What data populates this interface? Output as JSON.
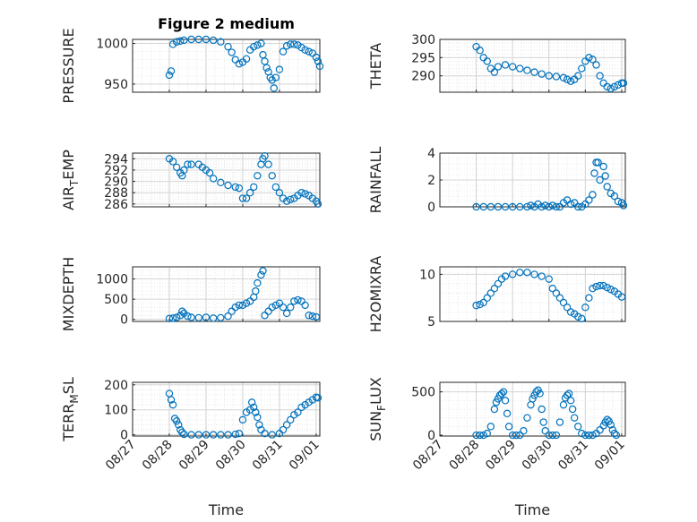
{
  "colors": {
    "marker": "#0072BD",
    "axis": "#262626",
    "grid": "#d0d0d0"
  },
  "chart_data": [
    {
      "type": "scatter",
      "title": "Figure 2 medium",
      "ylabel": {
        "main": "PRESSURE",
        "sub": "",
        "tail": ""
      },
      "xlabel": "",
      "x_tick_labels": false,
      "ylim": [
        940,
        1005
      ],
      "yticks": [
        950,
        1000
      ],
      "grid": true,
      "points": [
        [
          28.0,
          961
        ],
        [
          28.05,
          966
        ],
        [
          28.1,
          999
        ],
        [
          28.2,
          1002
        ],
        [
          28.3,
          1003
        ],
        [
          28.4,
          1004
        ],
        [
          28.6,
          1005
        ],
        [
          28.8,
          1005
        ],
        [
          29.0,
          1005
        ],
        [
          29.2,
          1004
        ],
        [
          29.4,
          1002
        ],
        [
          29.6,
          996
        ],
        [
          29.7,
          989
        ],
        [
          29.8,
          980
        ],
        [
          29.9,
          975
        ],
        [
          30.0,
          977
        ],
        [
          30.1,
          981
        ],
        [
          30.2,
          992
        ],
        [
          30.3,
          996
        ],
        [
          30.4,
          998
        ],
        [
          30.5,
          1000
        ],
        [
          30.55,
          986
        ],
        [
          30.6,
          978
        ],
        [
          30.65,
          970
        ],
        [
          30.7,
          965
        ],
        [
          30.75,
          958
        ],
        [
          30.8,
          955
        ],
        [
          30.85,
          945
        ],
        [
          30.9,
          958
        ],
        [
          31.0,
          968
        ],
        [
          31.1,
          990
        ],
        [
          31.2,
          997
        ],
        [
          31.3,
          999
        ],
        [
          31.4,
          999
        ],
        [
          31.5,
          998
        ],
        [
          31.6,
          995
        ],
        [
          31.7,
          992
        ],
        [
          31.8,
          990
        ],
        [
          31.9,
          988
        ],
        [
          32.0,
          983
        ],
        [
          32.05,
          978
        ],
        [
          32.1,
          972
        ]
      ]
    },
    {
      "type": "scatter",
      "title": "",
      "ylabel": {
        "main": "THETA",
        "sub": "",
        "tail": ""
      },
      "xlabel": "",
      "x_tick_labels": false,
      "ylim": [
        285.5,
        300
      ],
      "yticks": [
        290,
        295,
        300
      ],
      "grid": true,
      "points": [
        [
          28.0,
          298
        ],
        [
          28.1,
          297
        ],
        [
          28.2,
          295
        ],
        [
          28.3,
          294
        ],
        [
          28.4,
          292
        ],
        [
          28.5,
          291
        ],
        [
          28.6,
          292.5
        ],
        [
          28.8,
          293
        ],
        [
          29.0,
          292.5
        ],
        [
          29.2,
          292
        ],
        [
          29.4,
          291.5
        ],
        [
          29.6,
          291
        ],
        [
          29.8,
          290.5
        ],
        [
          30.0,
          290
        ],
        [
          30.2,
          289.8
        ],
        [
          30.4,
          289.5
        ],
        [
          30.5,
          289
        ],
        [
          30.6,
          288.5
        ],
        [
          30.7,
          289
        ],
        [
          30.8,
          290
        ],
        [
          30.9,
          292
        ],
        [
          31.0,
          294
        ],
        [
          31.1,
          295
        ],
        [
          31.2,
          294.5
        ],
        [
          31.3,
          293
        ],
        [
          31.4,
          290
        ],
        [
          31.5,
          288
        ],
        [
          31.6,
          287
        ],
        [
          31.7,
          286.5
        ],
        [
          31.8,
          287
        ],
        [
          31.9,
          287.5
        ],
        [
          32.0,
          288
        ],
        [
          32.05,
          288
        ]
      ]
    },
    {
      "type": "scatter",
      "title": "",
      "ylabel": {
        "main": "AIR",
        "sub": "T",
        "tail": "EMP"
      },
      "xlabel": "",
      "x_tick_labels": false,
      "ylim": [
        285.5,
        295
      ],
      "yticks": [
        286,
        288,
        290,
        292,
        294
      ],
      "grid": true,
      "points": [
        [
          28.0,
          294
        ],
        [
          28.1,
          293.5
        ],
        [
          28.2,
          292.5
        ],
        [
          28.3,
          291.5
        ],
        [
          28.35,
          291
        ],
        [
          28.4,
          292
        ],
        [
          28.5,
          293
        ],
        [
          28.6,
          293
        ],
        [
          28.8,
          293
        ],
        [
          28.9,
          292.5
        ],
        [
          29.0,
          292
        ],
        [
          29.1,
          291.5
        ],
        [
          29.2,
          290.5
        ],
        [
          29.4,
          289.8
        ],
        [
          29.6,
          289.3
        ],
        [
          29.8,
          289
        ],
        [
          29.9,
          288.8
        ],
        [
          30.0,
          287
        ],
        [
          30.1,
          287
        ],
        [
          30.2,
          288
        ],
        [
          30.3,
          289
        ],
        [
          30.4,
          291
        ],
        [
          30.5,
          293
        ],
        [
          30.55,
          294
        ],
        [
          30.6,
          294.5
        ],
        [
          30.7,
          293
        ],
        [
          30.8,
          291
        ],
        [
          30.9,
          289
        ],
        [
          31.0,
          288
        ],
        [
          31.1,
          287
        ],
        [
          31.2,
          286.5
        ],
        [
          31.3,
          286.8
        ],
        [
          31.4,
          287
        ],
        [
          31.5,
          287.5
        ],
        [
          31.6,
          288
        ],
        [
          31.7,
          287.8
        ],
        [
          31.8,
          287.5
        ],
        [
          31.9,
          287
        ],
        [
          32.0,
          286.5
        ],
        [
          32.05,
          286
        ]
      ]
    },
    {
      "type": "scatter",
      "title": "",
      "ylabel": {
        "main": "RAINFALL",
        "sub": "",
        "tail": ""
      },
      "xlabel": "",
      "x_tick_labels": false,
      "ylim": [
        0,
        4
      ],
      "yticks": [
        0,
        2,
        4
      ],
      "grid": true,
      "points": [
        [
          28.0,
          0
        ],
        [
          28.2,
          0
        ],
        [
          28.4,
          0
        ],
        [
          28.6,
          0
        ],
        [
          28.8,
          0
        ],
        [
          29.0,
          0
        ],
        [
          29.2,
          0
        ],
        [
          29.4,
          0
        ],
        [
          29.5,
          0.1
        ],
        [
          29.6,
          0
        ],
        [
          29.7,
          0.2
        ],
        [
          29.8,
          0
        ],
        [
          29.9,
          0.1
        ],
        [
          30.0,
          0
        ],
        [
          30.1,
          0.1
        ],
        [
          30.2,
          0
        ],
        [
          30.3,
          0
        ],
        [
          30.4,
          0.3
        ],
        [
          30.5,
          0.5
        ],
        [
          30.6,
          0.2
        ],
        [
          30.7,
          0.3
        ],
        [
          30.8,
          0
        ],
        [
          30.9,
          0
        ],
        [
          31.0,
          0.2
        ],
        [
          31.1,
          0.5
        ],
        [
          31.2,
          0.9
        ],
        [
          31.25,
          2.5
        ],
        [
          31.3,
          3.3
        ],
        [
          31.35,
          3.3
        ],
        [
          31.4,
          2.0
        ],
        [
          31.5,
          3.0
        ],
        [
          31.55,
          2.3
        ],
        [
          31.6,
          1.5
        ],
        [
          31.7,
          1.0
        ],
        [
          31.8,
          0.8
        ],
        [
          31.9,
          0.4
        ],
        [
          32.0,
          0.3
        ],
        [
          32.05,
          0.1
        ]
      ]
    },
    {
      "type": "scatter",
      "title": "",
      "ylabel": {
        "main": "MIXDEPTH",
        "sub": "",
        "tail": ""
      },
      "xlabel": "",
      "x_tick_labels": false,
      "ylim": [
        -50,
        1300
      ],
      "yticks": [
        0,
        500,
        1000
      ],
      "grid": true,
      "points": [
        [
          28.0,
          20
        ],
        [
          28.1,
          30
        ],
        [
          28.2,
          50
        ],
        [
          28.3,
          100
        ],
        [
          28.35,
          200
        ],
        [
          28.4,
          150
        ],
        [
          28.5,
          80
        ],
        [
          28.6,
          50
        ],
        [
          28.8,
          40
        ],
        [
          29.0,
          50
        ],
        [
          29.2,
          30
        ],
        [
          29.4,
          40
        ],
        [
          29.6,
          80
        ],
        [
          29.7,
          200
        ],
        [
          29.8,
          300
        ],
        [
          29.9,
          350
        ],
        [
          30.0,
          350
        ],
        [
          30.1,
          400
        ],
        [
          30.2,
          450
        ],
        [
          30.3,
          550
        ],
        [
          30.35,
          700
        ],
        [
          30.4,
          900
        ],
        [
          30.5,
          1100
        ],
        [
          30.55,
          1200
        ],
        [
          30.6,
          100
        ],
        [
          30.7,
          200
        ],
        [
          30.8,
          300
        ],
        [
          30.9,
          350
        ],
        [
          31.0,
          400
        ],
        [
          31.1,
          300
        ],
        [
          31.2,
          150
        ],
        [
          31.3,
          300
        ],
        [
          31.4,
          450
        ],
        [
          31.5,
          480
        ],
        [
          31.6,
          450
        ],
        [
          31.7,
          350
        ],
        [
          31.8,
          100
        ],
        [
          31.9,
          80
        ],
        [
          32.0,
          60
        ]
      ]
    },
    {
      "type": "scatter",
      "title": "",
      "ylabel": {
        "main": "H2OMIXRA",
        "sub": "",
        "tail": ""
      },
      "xlabel": "",
      "x_tick_labels": false,
      "ylim": [
        5,
        10.8
      ],
      "yticks": [
        5,
        10
      ],
      "grid": true,
      "points": [
        [
          28.0,
          6.7
        ],
        [
          28.1,
          6.8
        ],
        [
          28.2,
          7.0
        ],
        [
          28.3,
          7.5
        ],
        [
          28.4,
          8.0
        ],
        [
          28.5,
          8.5
        ],
        [
          28.6,
          9.0
        ],
        [
          28.7,
          9.5
        ],
        [
          28.8,
          9.8
        ],
        [
          29.0,
          10.0
        ],
        [
          29.2,
          10.2
        ],
        [
          29.4,
          10.2
        ],
        [
          29.6,
          10.0
        ],
        [
          29.8,
          9.8
        ],
        [
          30.0,
          9.5
        ],
        [
          30.1,
          8.5
        ],
        [
          30.2,
          8.0
        ],
        [
          30.3,
          7.5
        ],
        [
          30.4,
          7.0
        ],
        [
          30.5,
          6.5
        ],
        [
          30.6,
          6.0
        ],
        [
          30.7,
          5.8
        ],
        [
          30.8,
          5.5
        ],
        [
          30.9,
          5.3
        ],
        [
          31.0,
          6.5
        ],
        [
          31.1,
          7.5
        ],
        [
          31.2,
          8.5
        ],
        [
          31.3,
          8.7
        ],
        [
          31.4,
          8.8
        ],
        [
          31.5,
          8.8
        ],
        [
          31.6,
          8.6
        ],
        [
          31.7,
          8.4
        ],
        [
          31.8,
          8.2
        ],
        [
          31.9,
          7.9
        ],
        [
          32.0,
          7.6
        ]
      ]
    },
    {
      "type": "scatter",
      "title": "",
      "ylabel": {
        "main": "TERR",
        "sub": "M",
        "tail": "SL"
      },
      "xlabel": "Time",
      "x_tick_labels": true,
      "ylim": [
        -5,
        210
      ],
      "yticks": [
        0,
        100,
        200
      ],
      "grid": true,
      "points": [
        [
          28.0,
          165
        ],
        [
          28.05,
          140
        ],
        [
          28.1,
          120
        ],
        [
          28.15,
          65
        ],
        [
          28.2,
          55
        ],
        [
          28.25,
          40
        ],
        [
          28.3,
          20
        ],
        [
          28.35,
          10
        ],
        [
          28.4,
          2
        ],
        [
          28.6,
          0
        ],
        [
          28.8,
          0
        ],
        [
          29.0,
          0
        ],
        [
          29.2,
          0
        ],
        [
          29.4,
          0
        ],
        [
          29.6,
          0
        ],
        [
          29.8,
          2
        ],
        [
          29.9,
          5
        ],
        [
          30.0,
          60
        ],
        [
          30.1,
          90
        ],
        [
          30.2,
          100
        ],
        [
          30.25,
          130
        ],
        [
          30.3,
          110
        ],
        [
          30.35,
          90
        ],
        [
          30.4,
          70
        ],
        [
          30.45,
          40
        ],
        [
          30.5,
          20
        ],
        [
          30.6,
          5
        ],
        [
          30.8,
          0
        ],
        [
          31.0,
          5
        ],
        [
          31.1,
          20
        ],
        [
          31.2,
          40
        ],
        [
          31.3,
          60
        ],
        [
          31.4,
          80
        ],
        [
          31.5,
          90
        ],
        [
          31.6,
          110
        ],
        [
          31.7,
          120
        ],
        [
          31.8,
          130
        ],
        [
          31.9,
          140
        ],
        [
          32.0,
          150
        ],
        [
          32.05,
          148
        ]
      ]
    },
    {
      "type": "scatter",
      "title": "",
      "ylabel": {
        "main": "SUN",
        "sub": "F",
        "tail": "LUX"
      },
      "xlabel": "Time",
      "x_tick_labels": true,
      "ylim": [
        -10,
        610
      ],
      "yticks": [
        0,
        500
      ],
      "grid": true,
      "points": [
        [
          28.0,
          0
        ],
        [
          28.1,
          0
        ],
        [
          28.2,
          0
        ],
        [
          28.3,
          20
        ],
        [
          28.4,
          100
        ],
        [
          28.5,
          300
        ],
        [
          28.55,
          380
        ],
        [
          28.6,
          420
        ],
        [
          28.65,
          460
        ],
        [
          28.7,
          480
        ],
        [
          28.75,
          500
        ],
        [
          28.8,
          400
        ],
        [
          28.85,
          250
        ],
        [
          28.9,
          100
        ],
        [
          29.0,
          0
        ],
        [
          29.1,
          0
        ],
        [
          29.2,
          0
        ],
        [
          29.3,
          50
        ],
        [
          29.4,
          200
        ],
        [
          29.5,
          350
        ],
        [
          29.55,
          420
        ],
        [
          29.6,
          460
        ],
        [
          29.65,
          500
        ],
        [
          29.7,
          520
        ],
        [
          29.75,
          480
        ],
        [
          29.8,
          300
        ],
        [
          29.85,
          150
        ],
        [
          29.9,
          50
        ],
        [
          30.0,
          0
        ],
        [
          30.1,
          0
        ],
        [
          30.2,
          0
        ],
        [
          30.3,
          150
        ],
        [
          30.4,
          350
        ],
        [
          30.45,
          430
        ],
        [
          30.5,
          460
        ],
        [
          30.55,
          480
        ],
        [
          30.6,
          400
        ],
        [
          30.65,
          300
        ],
        [
          30.7,
          200
        ],
        [
          30.8,
          100
        ],
        [
          30.9,
          20
        ],
        [
          31.0,
          0
        ],
        [
          31.1,
          0
        ],
        [
          31.2,
          0
        ],
        [
          31.3,
          20
        ],
        [
          31.4,
          60
        ],
        [
          31.5,
          110
        ],
        [
          31.55,
          150
        ],
        [
          31.6,
          180
        ],
        [
          31.65,
          160
        ],
        [
          31.7,
          120
        ],
        [
          31.75,
          60
        ],
        [
          31.8,
          20
        ],
        [
          31.85,
          0
        ]
      ]
    }
  ],
  "x_axis": {
    "min": 27,
    "max": 32.1,
    "ticks": [
      27,
      28,
      29,
      30,
      31,
      32
    ],
    "tick_labels": [
      "08/27",
      "08/28",
      "08/29",
      "08/30",
      "08/31",
      "09/01"
    ]
  }
}
